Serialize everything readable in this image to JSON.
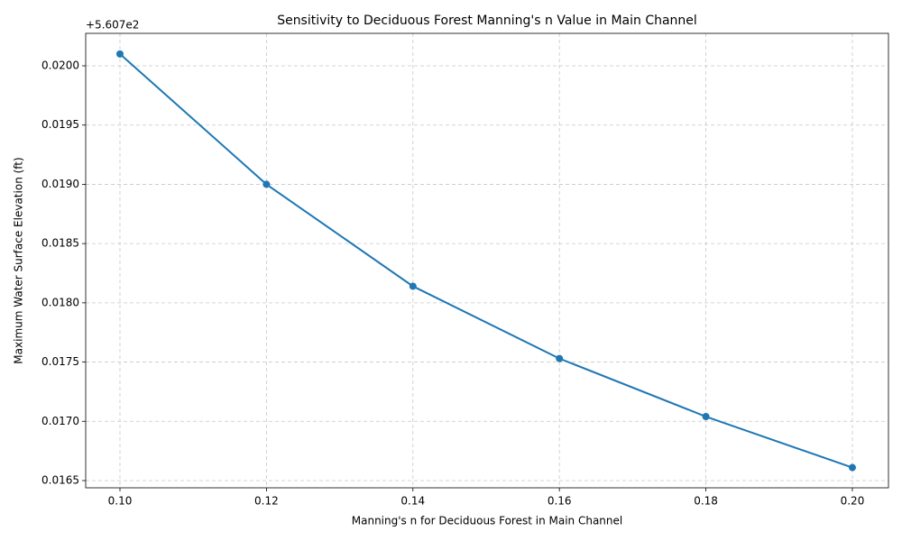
{
  "chart_data": {
    "type": "line",
    "title": "Sensitivity to Deciduous Forest Manning's n Value in Main Channel",
    "xlabel": "Manning's n for Deciduous Forest in Main Channel",
    "ylabel": "Maximum Water Surface Elevation (ft)",
    "y_offset_label": "+5.607e2",
    "x": [
      0.1,
      0.12,
      0.14,
      0.16,
      0.18,
      0.2
    ],
    "values": [
      0.0201,
      0.019,
      0.01814,
      0.01753,
      0.01704,
      0.01661
    ],
    "color": "#1f77b4",
    "xlim": [
      0.09532,
      0.20493
    ],
    "ylim": [
      0.016439,
      0.020274
    ],
    "xticks": [
      {
        "value": 0.1,
        "label": "0.10"
      },
      0.12,
      0.14,
      0.16,
      0.18,
      {
        "value": 0.2,
        "label": "0.20"
      }
    ],
    "yticks": [
      0.0165,
      {
        "value": 0.017,
        "label": "0.0170"
      },
      0.0175,
      {
        "value": 0.018,
        "label": "0.0180"
      },
      0.0185,
      {
        "value": 0.019,
        "label": "0.0190"
      },
      0.0195,
      {
        "value": 0.02,
        "label": "0.0200"
      }
    ],
    "grid": true
  }
}
